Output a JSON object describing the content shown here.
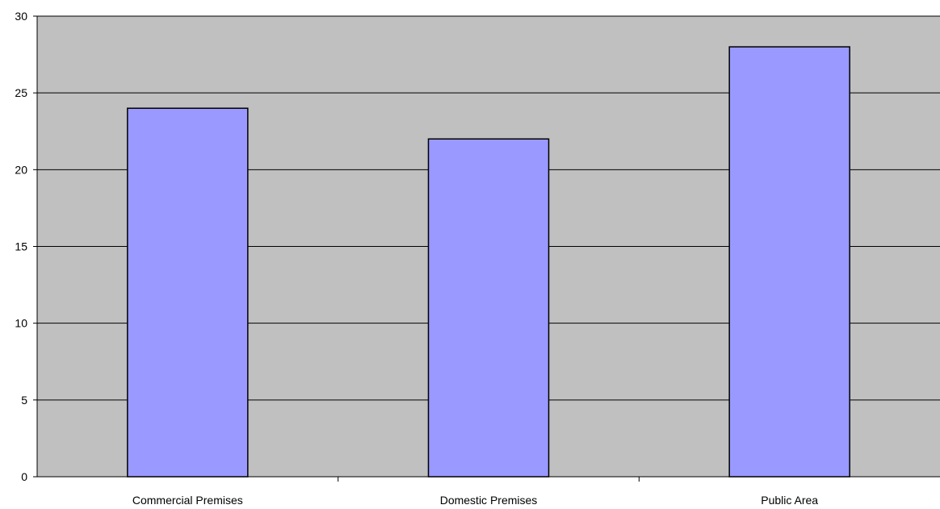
{
  "chart_data": {
    "type": "bar",
    "categories": [
      "Commercial Premises",
      "Domestic Premises",
      "Public Area"
    ],
    "values": [
      24,
      22,
      28
    ],
    "title": "",
    "xlabel": "",
    "ylabel": "",
    "ylim": [
      0,
      30
    ],
    "yticks": [
      "0",
      "5",
      "10",
      "15",
      "20",
      "25",
      "30"
    ],
    "grid": true,
    "legend": "none",
    "colors": {
      "plot_background": "#c0c0c0",
      "bar_fill": "#9999ff",
      "bar_stroke": "#000000",
      "gridline": "#000000"
    }
  }
}
